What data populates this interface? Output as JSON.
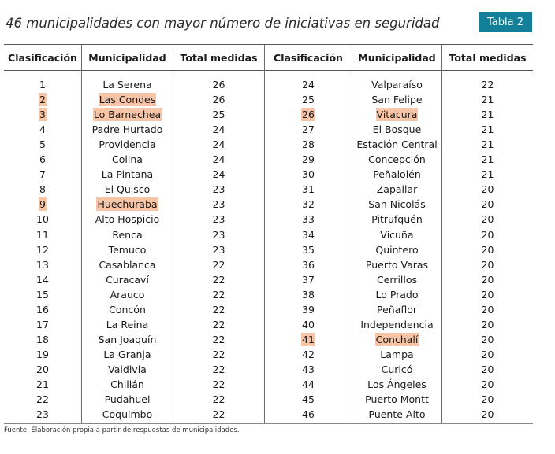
{
  "title": "46 municipalidades con mayor número de iniciativas en seguridad",
  "badge": "Tabla 2",
  "headers": [
    "Clasificación",
    "Municipalidad",
    "Total medidas",
    "Clasificación",
    "Municipalidad",
    "Total medidas"
  ],
  "colors": {
    "badge": "#137f98",
    "highlight": "#f7c5a6"
  },
  "left_rows": [
    {
      "rank": "1",
      "name": "La Serena",
      "total": "26"
    },
    {
      "rank": "2",
      "name": "Las Condes",
      "total": "26",
      "highlight": true
    },
    {
      "rank": "3",
      "name": "Lo Barnechea",
      "total": "25",
      "highlight": true
    },
    {
      "rank": "4",
      "name": "Padre Hurtado",
      "total": "24"
    },
    {
      "rank": "5",
      "name": "Providencia",
      "total": "24"
    },
    {
      "rank": "6",
      "name": "Colina",
      "total": "24"
    },
    {
      "rank": "7",
      "name": "La Pintana",
      "total": "24"
    },
    {
      "rank": "8",
      "name": "El Quisco",
      "total": "23"
    },
    {
      "rank": "9",
      "name": "Huechuraba",
      "total": "23",
      "highlight": true
    },
    {
      "rank": "10",
      "name": "Alto Hospicio",
      "total": "23"
    },
    {
      "rank": "11",
      "name": "Renca",
      "total": "23"
    },
    {
      "rank": "12",
      "name": "Temuco",
      "total": "23"
    },
    {
      "rank": "13",
      "name": "Casablanca",
      "total": "22"
    },
    {
      "rank": "14",
      "name": "Curacaví",
      "total": "22"
    },
    {
      "rank": "15",
      "name": "Arauco",
      "total": "22"
    },
    {
      "rank": "16",
      "name": "Concón",
      "total": "22"
    },
    {
      "rank": "17",
      "name": "La Reina",
      "total": "22"
    },
    {
      "rank": "18",
      "name": "San Joaquín",
      "total": "22"
    },
    {
      "rank": "19",
      "name": "La Granja",
      "total": "22"
    },
    {
      "rank": "20",
      "name": "Valdivia",
      "total": "22"
    },
    {
      "rank": "21",
      "name": "Chillán",
      "total": "22"
    },
    {
      "rank": "22",
      "name": "Pudahuel",
      "total": "22"
    },
    {
      "rank": "23",
      "name": "Coquimbo",
      "total": "22"
    }
  ],
  "right_rows": [
    {
      "rank": "24",
      "name": "Valparaíso",
      "total": "22"
    },
    {
      "rank": "25",
      "name": "San Felipe",
      "total": "21"
    },
    {
      "rank": "26",
      "name": "Vitacura",
      "total": "21",
      "highlight": true
    },
    {
      "rank": "27",
      "name": "El Bosque",
      "total": "21"
    },
    {
      "rank": "28",
      "name": "Estación Central",
      "total": "21"
    },
    {
      "rank": "29",
      "name": "Concepción",
      "total": "21"
    },
    {
      "rank": "30",
      "name": "Peñalolén",
      "total": "21"
    },
    {
      "rank": "31",
      "name": "Zapallar",
      "total": "20"
    },
    {
      "rank": "32",
      "name": "San Nicolás",
      "total": "20"
    },
    {
      "rank": "33",
      "name": "Pitrufquén",
      "total": "20"
    },
    {
      "rank": "34",
      "name": "Vicuña",
      "total": "20"
    },
    {
      "rank": "35",
      "name": "Quintero",
      "total": "20"
    },
    {
      "rank": "36",
      "name": "Puerto Varas",
      "total": "20"
    },
    {
      "rank": "37",
      "name": "Cerrillos",
      "total": "20"
    },
    {
      "rank": "38",
      "name": "Lo Prado",
      "total": "20"
    },
    {
      "rank": "39",
      "name": "Peñaflor",
      "total": "20"
    },
    {
      "rank": "40",
      "name": "Independencia",
      "total": "20"
    },
    {
      "rank": "41",
      "name": "Conchalí",
      "total": "20",
      "highlight": true
    },
    {
      "rank": "42",
      "name": "Lampa",
      "total": "20"
    },
    {
      "rank": "43",
      "name": "Curicó",
      "total": "20"
    },
    {
      "rank": "44",
      "name": "Los Ángeles",
      "total": "20"
    },
    {
      "rank": "45",
      "name": "Puerto Montt",
      "total": "20"
    },
    {
      "rank": "46",
      "name": "Puente Alto",
      "total": "20"
    }
  ],
  "source": "Fuente: Elaboración propia a partir de respuestas de municipalidades."
}
